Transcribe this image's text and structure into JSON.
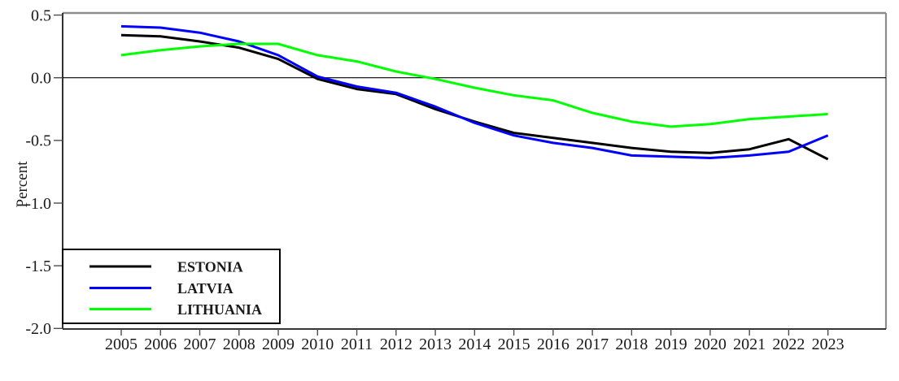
{
  "chart_data": {
    "type": "line",
    "title": "",
    "xlabel": "",
    "ylabel": "Percent",
    "ylim": [
      -2.0,
      0.5
    ],
    "yticks": [
      0.5,
      0.0,
      -0.5,
      -1.0,
      -1.5,
      -2.0
    ],
    "ytick_labels": [
      "0.5",
      "0.0",
      "-0.5",
      "-1.0",
      "-1.5",
      "-2.0"
    ],
    "x": [
      2005,
      2006,
      2007,
      2008,
      2009,
      2010,
      2011,
      2012,
      2013,
      2014,
      2015,
      2016,
      2017,
      2018,
      2019,
      2020,
      2021,
      2022,
      2023
    ],
    "xtick_labels": [
      "2005",
      "2006",
      "2007",
      "2008",
      "2009",
      "2010",
      "2011",
      "2012",
      "2013",
      "2014",
      "2015",
      "2016",
      "2017",
      "2018",
      "2019",
      "2020",
      "2021",
      "2022",
      "2023"
    ],
    "grid": false,
    "zero_line": true,
    "legend_position": "bottom-left",
    "series": [
      {
        "name": "ESTONIA",
        "color": "#000000",
        "values": [
          0.34,
          0.33,
          0.29,
          0.24,
          0.15,
          -0.01,
          -0.09,
          -0.13,
          -0.25,
          -0.35,
          -0.44,
          -0.48,
          -0.52,
          -0.56,
          -0.59,
          -0.6,
          -0.57,
          -0.49,
          -0.65
        ]
      },
      {
        "name": "LATVIA",
        "color": "#0000ff",
        "values": [
          0.41,
          0.4,
          0.36,
          0.29,
          0.18,
          0.01,
          -0.07,
          -0.12,
          -0.23,
          -0.36,
          -0.46,
          -0.52,
          -0.56,
          -0.62,
          -0.63,
          -0.64,
          -0.62,
          -0.59,
          -0.46
        ]
      },
      {
        "name": "LITHUANIA",
        "color": "#00ff00",
        "values": [
          0.18,
          0.22,
          0.25,
          0.27,
          0.27,
          0.18,
          0.13,
          0.05,
          -0.01,
          -0.08,
          -0.14,
          -0.18,
          -0.28,
          -0.35,
          -0.39,
          -0.37,
          -0.33,
          -0.31,
          -0.29
        ]
      }
    ]
  },
  "colors": {
    "background": "#ffffff",
    "axis": "#1a1a1a",
    "border_gray": "#8c8c8c",
    "tick": "#4d4d4d",
    "text": "#1a1a1a"
  }
}
